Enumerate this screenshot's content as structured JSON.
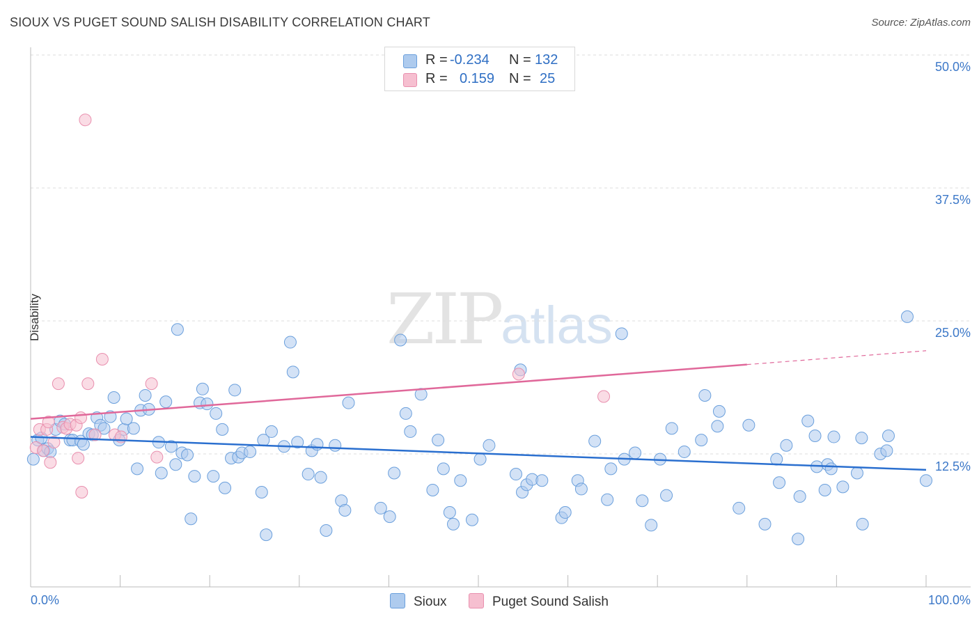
{
  "header": {
    "title": "SIOUX VS PUGET SOUND SALISH DISABILITY CORRELATION CHART",
    "source": "Source: ZipAtlas.com"
  },
  "watermark": {
    "zip": "ZIP",
    "atlas": "atlas"
  },
  "colors": {
    "sioux_fill": "#aecbee",
    "sioux_stroke": "#6a9fdc",
    "sioux_line": "#2a6fcf",
    "puget_fill": "#f6bfd0",
    "puget_stroke": "#e98fae",
    "puget_line": "#e0689a",
    "tick_text": "#3c78c8",
    "grid": "#dddddd"
  },
  "legend": {
    "rows": [
      {
        "r_label": "R =",
        "r_value": "-0.234",
        "n_label": "N =",
        "n_value": "132"
      },
      {
        "r_label": "R =",
        "r_value": "0.159",
        "n_label": "N =",
        "n_value": "25"
      }
    ]
  },
  "bottom_legend": {
    "sioux": "Sioux",
    "puget": "Puget Sound Salish"
  },
  "chart_data": {
    "type": "scatter",
    "title": "SIOUX VS PUGET SOUND SALISH DISABILITY CORRELATION CHART",
    "xlabel": "",
    "ylabel": "Disability",
    "xlim": [
      0,
      100
    ],
    "ylim": [
      0,
      52
    ],
    "x_tick_labels": [
      "0.0%",
      "100.0%"
    ],
    "y_ticks": [
      12.5,
      25.0,
      37.5,
      50.0
    ],
    "y_tick_labels": [
      "12.5%",
      "25.0%",
      "37.5%",
      "50.0%"
    ],
    "grid": true,
    "series": [
      {
        "name": "Sioux",
        "r": -0.234,
        "n": 132,
        "trend": {
          "x": [
            0,
            100
          ],
          "y": [
            14.1,
            11.0
          ]
        },
        "points": [
          [
            0.3,
            12.0
          ],
          [
            0.8,
            13.8
          ],
          [
            1.2,
            14.0
          ],
          [
            1.5,
            12.8
          ],
          [
            1.9,
            13.0
          ],
          [
            2.2,
            12.7
          ],
          [
            2.8,
            14.8
          ],
          [
            3.3,
            15.6
          ],
          [
            3.8,
            15.3
          ],
          [
            4.4,
            13.8
          ],
          [
            4.7,
            13.8
          ],
          [
            5.6,
            13.7
          ],
          [
            5.9,
            13.4
          ],
          [
            6.5,
            14.4
          ],
          [
            6.9,
            14.3
          ],
          [
            7.4,
            15.9
          ],
          [
            7.8,
            15.2
          ],
          [
            8.2,
            14.9
          ],
          [
            8.9,
            16.0
          ],
          [
            9.3,
            17.8
          ],
          [
            9.9,
            13.8
          ],
          [
            10.4,
            14.8
          ],
          [
            10.7,
            15.8
          ],
          [
            11.5,
            14.9
          ],
          [
            11.9,
            11.1
          ],
          [
            12.3,
            16.6
          ],
          [
            12.8,
            18.0
          ],
          [
            13.2,
            16.7
          ],
          [
            14.3,
            13.6
          ],
          [
            14.6,
            10.7
          ],
          [
            15.1,
            17.4
          ],
          [
            15.7,
            13.2
          ],
          [
            16.2,
            11.5
          ],
          [
            16.4,
            24.2
          ],
          [
            16.9,
            12.6
          ],
          [
            17.5,
            12.4
          ],
          [
            17.9,
            6.4
          ],
          [
            18.3,
            10.4
          ],
          [
            18.9,
            17.3
          ],
          [
            19.2,
            18.6
          ],
          [
            19.7,
            17.2
          ],
          [
            20.4,
            10.4
          ],
          [
            20.7,
            16.3
          ],
          [
            21.4,
            14.8
          ],
          [
            21.7,
            9.3
          ],
          [
            22.4,
            12.1
          ],
          [
            22.8,
            18.5
          ],
          [
            23.2,
            12.2
          ],
          [
            23.6,
            12.6
          ],
          [
            24.5,
            12.7
          ],
          [
            25.8,
            8.9
          ],
          [
            26.0,
            13.8
          ],
          [
            26.3,
            4.9
          ],
          [
            26.9,
            14.6
          ],
          [
            28.3,
            13.2
          ],
          [
            29.0,
            23.0
          ],
          [
            29.3,
            20.2
          ],
          [
            29.8,
            13.6
          ],
          [
            31.0,
            10.6
          ],
          [
            31.4,
            12.8
          ],
          [
            32.0,
            13.4
          ],
          [
            32.4,
            10.3
          ],
          [
            33.0,
            5.3
          ],
          [
            34.0,
            13.3
          ],
          [
            34.7,
            8.1
          ],
          [
            35.1,
            7.2
          ],
          [
            35.5,
            17.3
          ],
          [
            39.1,
            7.4
          ],
          [
            40.1,
            6.6
          ],
          [
            40.6,
            10.7
          ],
          [
            41.3,
            23.2
          ],
          [
            41.9,
            16.3
          ],
          [
            42.4,
            14.6
          ],
          [
            43.6,
            18.1
          ],
          [
            44.9,
            9.1
          ],
          [
            45.5,
            13.8
          ],
          [
            46.1,
            11.1
          ],
          [
            46.8,
            7.0
          ],
          [
            47.2,
            5.9
          ],
          [
            48.0,
            10.0
          ],
          [
            49.3,
            6.3
          ],
          [
            50.2,
            12.0
          ],
          [
            51.2,
            13.3
          ],
          [
            54.2,
            10.6
          ],
          [
            54.7,
            20.4
          ],
          [
            54.9,
            8.9
          ],
          [
            55.4,
            9.6
          ],
          [
            56.0,
            10.1
          ],
          [
            57.1,
            10.0
          ],
          [
            59.3,
            6.5
          ],
          [
            59.7,
            7.0
          ],
          [
            61.1,
            10.0
          ],
          [
            61.5,
            9.2
          ],
          [
            63.0,
            13.7
          ],
          [
            64.4,
            8.2
          ],
          [
            64.8,
            11.1
          ],
          [
            66.0,
            23.8
          ],
          [
            66.3,
            12.0
          ],
          [
            67.5,
            12.6
          ],
          [
            68.3,
            8.1
          ],
          [
            69.3,
            5.8
          ],
          [
            70.3,
            12.0
          ],
          [
            71.0,
            8.6
          ],
          [
            71.6,
            14.9
          ],
          [
            73.0,
            12.7
          ],
          [
            74.9,
            13.8
          ],
          [
            75.3,
            18.0
          ],
          [
            76.7,
            15.1
          ],
          [
            76.9,
            16.5
          ],
          [
            79.1,
            7.4
          ],
          [
            80.2,
            15.2
          ],
          [
            82.0,
            5.9
          ],
          [
            83.3,
            12.0
          ],
          [
            83.6,
            9.8
          ],
          [
            84.4,
            13.3
          ],
          [
            85.7,
            4.5
          ],
          [
            85.9,
            8.5
          ],
          [
            86.8,
            15.6
          ],
          [
            87.6,
            14.2
          ],
          [
            87.8,
            11.3
          ],
          [
            88.7,
            9.1
          ],
          [
            89.0,
            11.5
          ],
          [
            89.4,
            11.1
          ],
          [
            89.7,
            14.1
          ],
          [
            90.7,
            9.4
          ],
          [
            92.3,
            10.7
          ],
          [
            92.8,
            14.0
          ],
          [
            92.9,
            5.9
          ],
          [
            94.9,
            12.5
          ],
          [
            95.6,
            12.8
          ],
          [
            95.8,
            14.2
          ],
          [
            97.9,
            25.4
          ],
          [
            100.0,
            10.0
          ]
        ]
      },
      {
        "name": "Puget Sound Salish",
        "r": 0.159,
        "n": 25,
        "trend": {
          "x": [
            0,
            80
          ],
          "y": [
            15.8,
            20.9
          ]
        },
        "trend_dashed": {
          "x": [
            80,
            100
          ],
          "y": [
            20.9,
            22.2
          ]
        },
        "points": [
          [
            0.6,
            13.1
          ],
          [
            1.0,
            14.8
          ],
          [
            1.4,
            12.8
          ],
          [
            1.8,
            14.8
          ],
          [
            2.0,
            15.5
          ],
          [
            2.2,
            11.7
          ],
          [
            2.6,
            13.6
          ],
          [
            3.1,
            19.1
          ],
          [
            3.6,
            15.0
          ],
          [
            4.0,
            14.9
          ],
          [
            4.4,
            15.3
          ],
          [
            5.1,
            15.2
          ],
          [
            5.3,
            12.1
          ],
          [
            5.6,
            15.9
          ],
          [
            5.7,
            8.9
          ],
          [
            6.1,
            43.9
          ],
          [
            6.4,
            19.1
          ],
          [
            7.2,
            14.3
          ],
          [
            8.0,
            21.4
          ],
          [
            9.4,
            14.3
          ],
          [
            10.1,
            14.1
          ],
          [
            13.5,
            19.1
          ],
          [
            14.1,
            12.2
          ],
          [
            54.5,
            20.0
          ],
          [
            64.0,
            17.9
          ]
        ]
      }
    ]
  }
}
